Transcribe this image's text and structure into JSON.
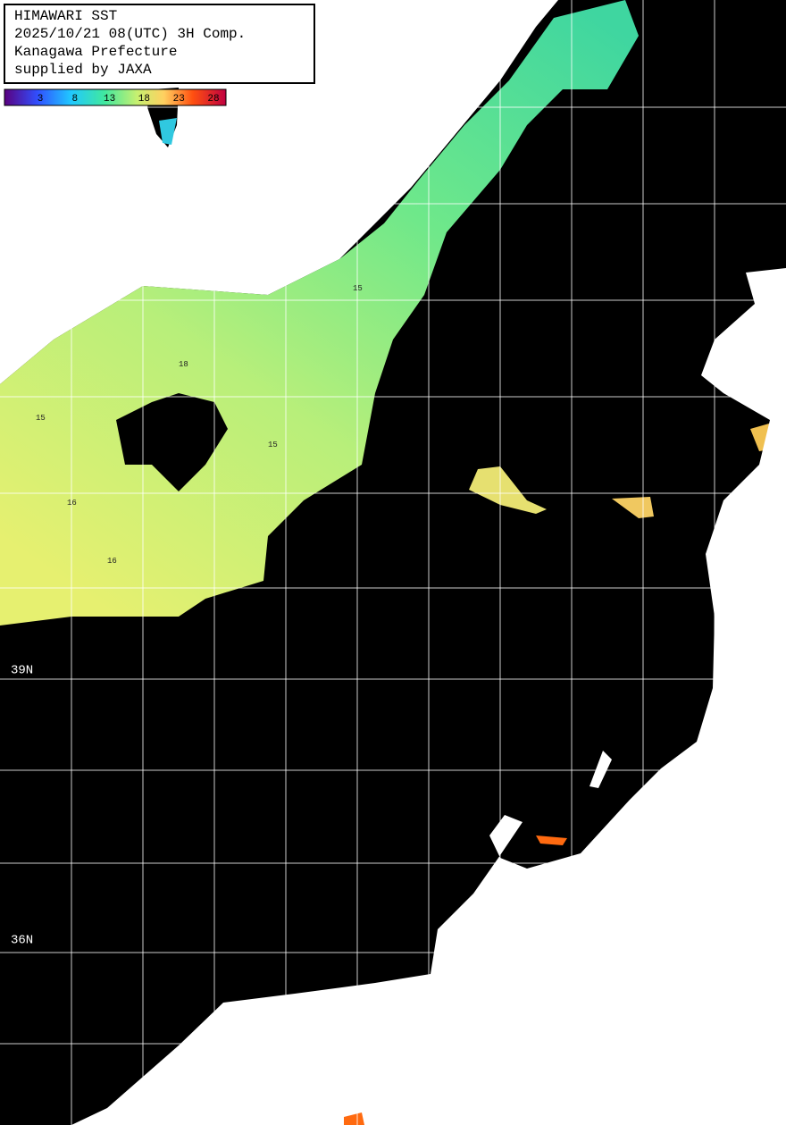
{
  "header": {
    "lines": [
      "HIMAWARI SST",
      "2025/10/21 08(UTC) 3H Comp.",
      "Kanagawa Prefecture",
      "supplied by JAXA"
    ]
  },
  "colorbar": {
    "ticks": [
      3,
      8,
      13,
      18,
      23,
      28
    ]
  },
  "latitude_labels": [
    "39N",
    "36N"
  ],
  "contour_labels": [
    "15",
    "15",
    "16",
    "18",
    "16",
    "15"
  ]
}
